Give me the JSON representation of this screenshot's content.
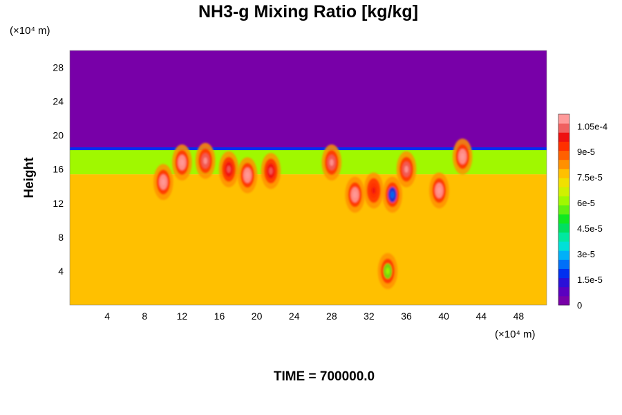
{
  "chart_data": {
    "type": "heatmap",
    "title": "NH3-g Mixing Ratio [kg/kg]",
    "ylabel": "Height",
    "y_unit": "(×10⁴ m)",
    "x_unit": "(×10⁴ m)",
    "time_label": "TIME = 700000.0",
    "xlim": [
      0,
      51
    ],
    "ylim": [
      0,
      30
    ],
    "x_ticks": [
      "4",
      "8",
      "12",
      "16",
      "20",
      "24",
      "28",
      "32",
      "36",
      "40",
      "44",
      "48"
    ],
    "y_ticks": [
      "4",
      "8",
      "12",
      "16",
      "20",
      "24",
      "28"
    ],
    "colorbar": {
      "range": [
        0,
        0.000112
      ],
      "tick_labels": [
        "0",
        "1.5e-5",
        "3e-5",
        "4.5e-5",
        "6e-5",
        "7.5e-5",
        "9e-5",
        "1.05e-4"
      ],
      "tick_values": [
        0,
        1.5e-05,
        3e-05,
        4.5e-05,
        6e-05,
        7.5e-05,
        9e-05,
        0.000105
      ],
      "colors": [
        "#7800a8",
        "#5a00c0",
        "#2a10d8",
        "#0030f0",
        "#0070f8",
        "#00b0f8",
        "#00e0d8",
        "#00e8a0",
        "#00e060",
        "#10e820",
        "#60f010",
        "#a0f800",
        "#d0f000",
        "#f0e000",
        "#ffc000",
        "#ff9000",
        "#ff6000",
        "#ff3000",
        "#ee1010",
        "#f06060",
        "#ff9a9a"
      ]
    },
    "field_summary": {
      "upper_layer": {
        "y_range": [
          18.5,
          30
        ],
        "value": 0
      },
      "transition_band": {
        "y_range": [
          15.4,
          18.5
        ],
        "value": 6.2e-05
      },
      "lower_layer": {
        "y_range": [
          0,
          15.4
        ],
        "value": 7.6e-05
      },
      "convective_features": [
        {
          "x": 10,
          "y": 14.5,
          "value": 0.000108
        },
        {
          "x": 12,
          "y": 16.8,
          "value": 0.000108
        },
        {
          "x": 14.5,
          "y": 17,
          "value": 0.000105
        },
        {
          "x": 17,
          "y": 16,
          "value": 0.0001
        },
        {
          "x": 19,
          "y": 15.3,
          "value": 0.000108
        },
        {
          "x": 21.5,
          "y": 15.8,
          "value": 0.0001
        },
        {
          "x": 28,
          "y": 16.8,
          "value": 0.000105
        },
        {
          "x": 30.5,
          "y": 13,
          "value": 0.000108
        },
        {
          "x": 32.5,
          "y": 13.5,
          "value": 9.5e-05
        },
        {
          "x": 34.5,
          "y": 13,
          "value": 2e-05
        },
        {
          "x": 36,
          "y": 16,
          "value": 0.000105
        },
        {
          "x": 39.5,
          "y": 13.5,
          "value": 0.000108
        },
        {
          "x": 42,
          "y": 17.5,
          "value": 0.000108
        },
        {
          "x": 34,
          "y": 4,
          "value": 5.5e-05
        }
      ]
    }
  }
}
